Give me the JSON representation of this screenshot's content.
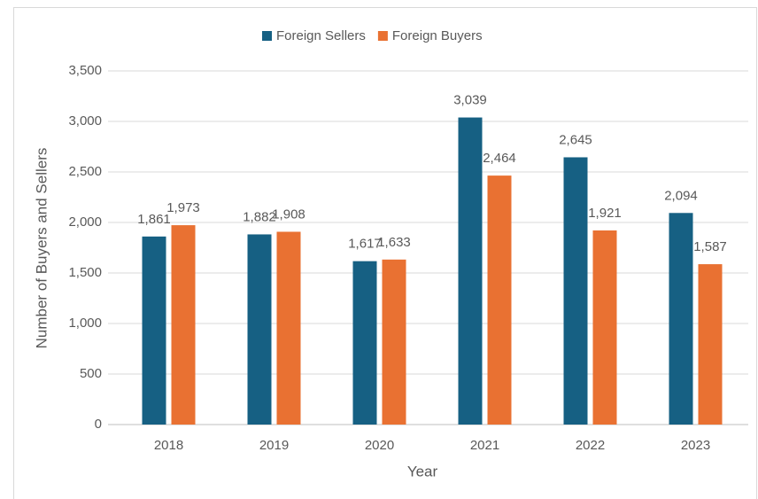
{
  "chart_data": {
    "type": "bar",
    "x_label": "Year",
    "y_label": "Number of Buyers and Sellers",
    "categories": [
      "2018",
      "2019",
      "2020",
      "2021",
      "2022",
      "2023"
    ],
    "series": [
      {
        "name": "Foreign Sellers",
        "color": "#166083",
        "values": [
          1861,
          1882,
          1617,
          3039,
          2645,
          2094
        ],
        "value_labels": [
          "1,861",
          "1,882",
          "1,617",
          "3,039",
          "2,645",
          "2,094"
        ]
      },
      {
        "name": "Foreign Buyers",
        "color": "#e97132",
        "values": [
          1973,
          1908,
          1633,
          2464,
          1921,
          1587
        ],
        "value_labels": [
          "1,973",
          "1,908",
          "1,633",
          "2,464",
          "1,921",
          "1,587"
        ]
      }
    ],
    "ylim": [
      0,
      3500
    ],
    "yticks": [
      0,
      500,
      {
        "value": 1000,
        "label": "1,000"
      },
      {
        "value": 1500,
        "label": "1,500"
      },
      {
        "value": 2000,
        "label": "2,000"
      },
      {
        "value": 2500,
        "label": "2,500"
      },
      {
        "value": 3000,
        "label": "3,000"
      },
      {
        "value": 3500,
        "label": "3,500"
      }
    ],
    "grid": true,
    "legend": "top"
  }
}
